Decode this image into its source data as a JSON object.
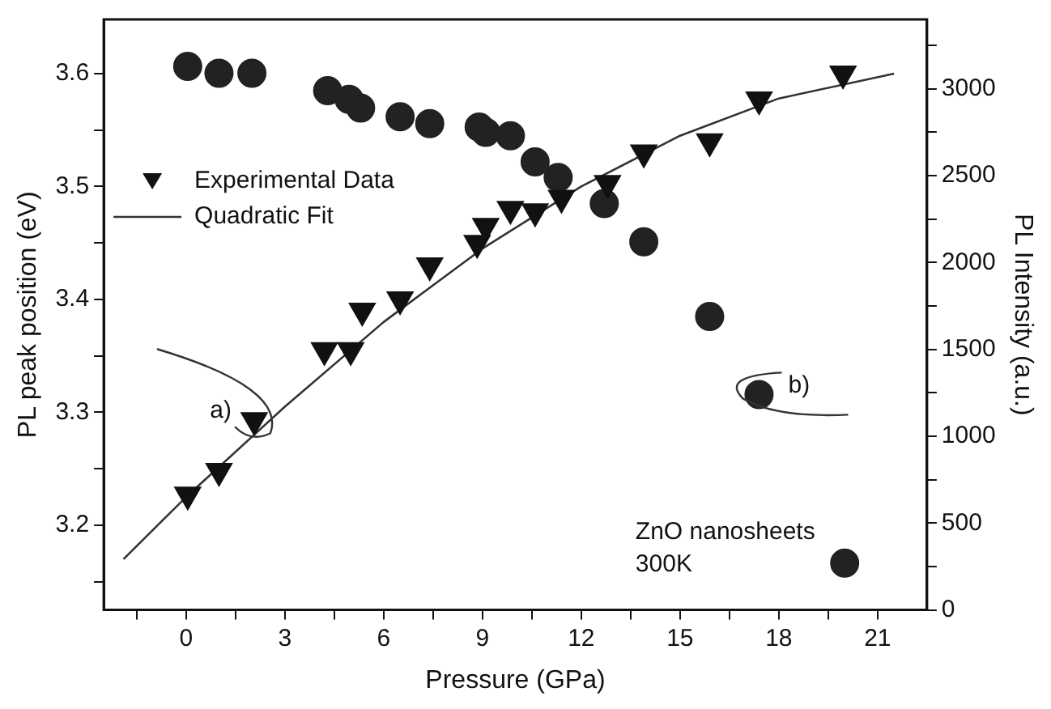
{
  "chart_data": {
    "type": "scatter",
    "xlabel": "Pressure (GPa)",
    "ylabel": "PL peak position (eV)",
    "y2label": "PL Intensity (a.u.)",
    "xlim": [
      -2.5,
      22.5
    ],
    "xticks": [
      0,
      {
        "value": 1.5,
        "label": null
      },
      3,
      {
        "value": 4.5,
        "label": null
      },
      6,
      {
        "value": 7.5,
        "label": null
      },
      9,
      {
        "value": 10.5,
        "label": null
      },
      12,
      {
        "value": 13.5,
        "label": null
      },
      15,
      {
        "value": 16.5,
        "label": null
      },
      18,
      {
        "value": 19.5,
        "label": null
      },
      21,
      {
        "value": -1.5,
        "label": null
      }
    ],
    "ylim": [
      3.125,
      3.648
    ],
    "yticks": [
      {
        "value": 3.15,
        "label": null
      },
      3.2,
      {
        "value": 3.25,
        "label": null
      },
      3.3,
      {
        "value": 3.35,
        "label": null
      },
      3.4,
      {
        "value": 3.45,
        "label": null
      },
      3.5,
      {
        "value": 3.55,
        "label": null
      },
      3.6
    ],
    "y2lim": [
      0,
      3400
    ],
    "y2ticks": [
      0,
      {
        "value": 250,
        "label": null
      },
      500,
      {
        "value": 750,
        "label": null
      },
      1000,
      {
        "value": 1250,
        "label": null
      },
      1500,
      {
        "value": 1750,
        "label": null
      },
      2000,
      {
        "value": 2250,
        "label": null
      },
      2500,
      {
        "value": 2750,
        "label": null
      },
      3000,
      {
        "value": 3250,
        "label": null
      }
    ],
    "grid": false,
    "legend": "top left",
    "series": [
      {
        "name": "Experimental Data",
        "type": "scatter",
        "marker": "triangle",
        "color": "#111111",
        "x": [
          0.05,
          1.0,
          2.07,
          4.2,
          5.0,
          5.35,
          6.5,
          7.4,
          8.84,
          9.1,
          9.85,
          10.6,
          11.4,
          12.8,
          13.9,
          15.9,
          17.4,
          19.95
        ],
        "values": [
          3.227,
          3.248,
          3.293,
          3.355,
          3.355,
          3.39,
          3.4,
          3.43,
          3.45,
          3.465,
          3.48,
          3.478,
          3.49,
          3.503,
          3.53,
          3.54,
          3.577,
          3.6
        ]
      },
      {
        "name": "Quadratic Fit",
        "type": "line",
        "marker": "none",
        "color": "#333333",
        "x": [
          -1.9,
          0,
          3,
          6,
          9,
          12,
          15,
          18,
          21.5
        ],
        "values": [
          3.17,
          3.225,
          3.305,
          3.38,
          3.445,
          3.5,
          3.545,
          3.578,
          3.6
        ]
      },
      {
        "type": "scatter",
        "marker": "circle",
        "axis": "y2",
        "color": "#222222",
        "x": [
          0.05,
          1.0,
          2.0,
          4.3,
          4.95,
          5.3,
          6.5,
          7.4,
          8.9,
          9.1,
          9.85,
          10.6,
          11.3,
          12.7,
          13.9,
          15.9,
          17.4,
          20.0
        ],
        "values": [
          3130,
          3090,
          3090,
          2990,
          2940,
          2890,
          2840,
          2800,
          2780,
          2750,
          2730,
          2580,
          2490,
          2340,
          2120,
          1690,
          1240,
          270
        ]
      }
    ],
    "annotations": [
      {
        "text": "a)",
        "x": 2.07,
        "y": 3.293
      },
      {
        "text": "b)",
        "x": 17.4,
        "y": 3.318
      },
      "ZnO nanosheets\n300K"
    ]
  }
}
